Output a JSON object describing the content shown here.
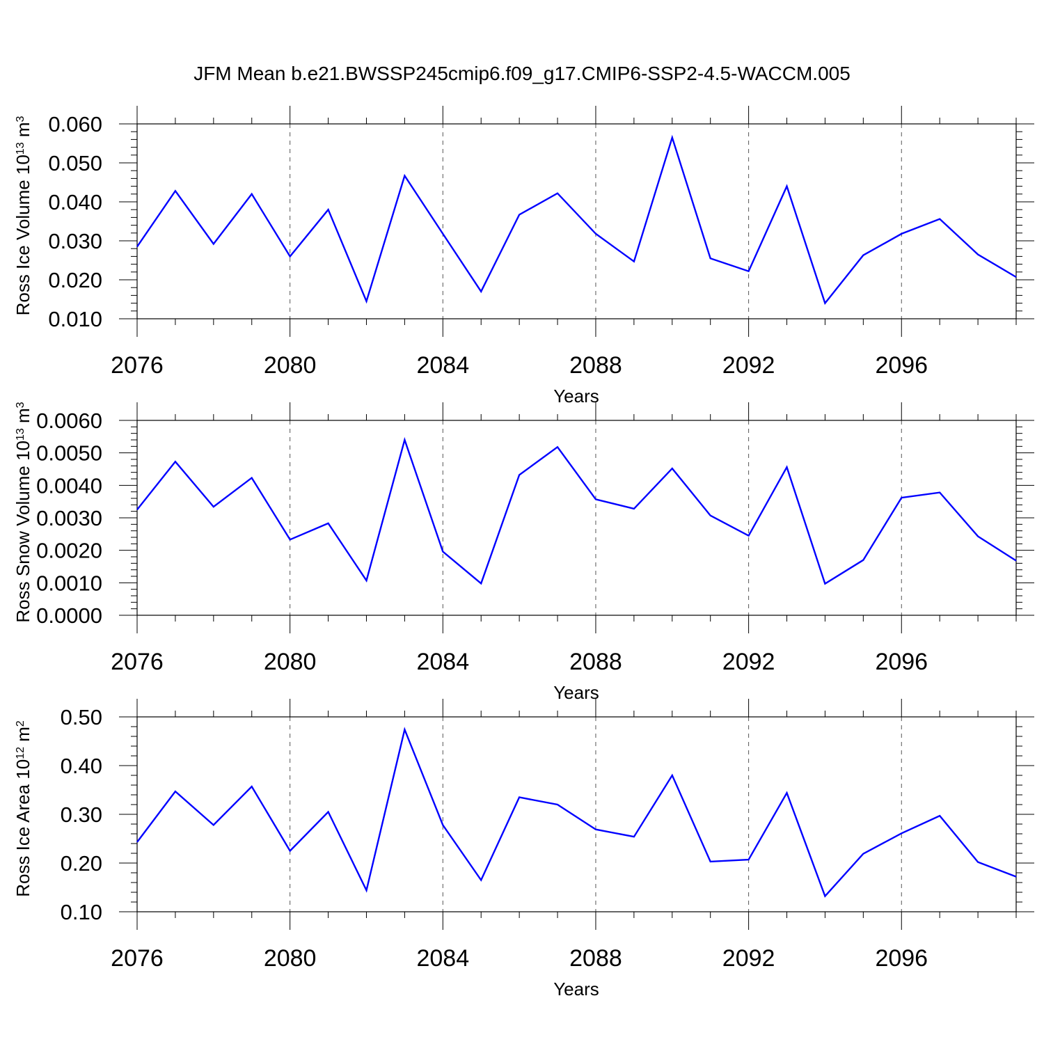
{
  "title": "JFM Mean b.e21.BWSSP245cmip6.f09_g17.CMIP6-SSP2-4.5-WACCM.005",
  "colors": {
    "line": "#0000ff",
    "axes": "#000000",
    "grid": "#555555"
  },
  "chart_data": [
    {
      "type": "line",
      "title": "JFM Mean b.e21.BWSSP245cmip6.f09_g17.CMIP6-SSP2-4.5-WACCM.005",
      "xlabel": "Years",
      "ylabel": {
        "text": "Ross Ice Volume 10",
        "sup": "13",
        "unit": " m",
        "unit_sup": "3"
      },
      "xlim": [
        2076,
        2099
      ],
      "ylim": [
        0.01,
        0.06
      ],
      "x_ticks": [
        "2076",
        "2080",
        "2084",
        "2088",
        "2092",
        "2096"
      ],
      "y_ticks": [
        "0.010",
        "0.020",
        "0.030",
        "0.040",
        "0.050",
        "0.060"
      ],
      "x": [
        2076,
        2077,
        2078,
        2079,
        2080,
        2081,
        2082,
        2083,
        2084,
        2085,
        2086,
        2087,
        2088,
        2089,
        2090,
        2091,
        2092,
        2093,
        2094,
        2095,
        2096,
        2097,
        2098,
        2099
      ],
      "series": [
        {
          "values": [
            0.0285,
            0.0428,
            0.0292,
            0.042,
            0.026,
            0.038,
            0.0145,
            0.0467,
            0.0318,
            0.017,
            0.0367,
            0.0422,
            0.0318,
            0.0247,
            0.0565,
            0.0255,
            0.0222,
            0.044,
            0.014,
            0.0263,
            0.0318,
            0.0356,
            0.0265,
            0.0207
          ]
        }
      ],
      "grid": "vertical dashed at major x ticks"
    },
    {
      "type": "line",
      "xlabel": "Years",
      "ylabel": {
        "text": "Ross Snow Volume 10",
        "sup": "13",
        "unit": " m",
        "unit_sup": "3"
      },
      "xlim": [
        2076,
        2099
      ],
      "ylim": [
        0.0,
        0.006
      ],
      "x_ticks": [
        "2076",
        "2080",
        "2084",
        "2088",
        "2092",
        "2096"
      ],
      "y_ticks": [
        "0.0000",
        "0.0010",
        "0.0020",
        "0.0030",
        "0.0040",
        "0.0050",
        "0.0060"
      ],
      "x": [
        2076,
        2077,
        2078,
        2079,
        2080,
        2081,
        2082,
        2083,
        2084,
        2085,
        2086,
        2087,
        2088,
        2089,
        2090,
        2091,
        2092,
        2093,
        2094,
        2095,
        2096,
        2097,
        2098,
        2099
      ],
      "series": [
        {
          "values": [
            0.00325,
            0.00473,
            0.00334,
            0.00423,
            0.00233,
            0.00283,
            0.00107,
            0.0054,
            0.00196,
            0.00098,
            0.00432,
            0.00518,
            0.00357,
            0.00328,
            0.00452,
            0.00307,
            0.00245,
            0.00456,
            0.00097,
            0.0017,
            0.00362,
            0.00378,
            0.00243,
            0.00168
          ]
        }
      ],
      "grid": "vertical dashed at major x ticks"
    },
    {
      "type": "line",
      "xlabel": "Years",
      "ylabel": {
        "text": "Ross Ice Area 10",
        "sup": "12",
        "unit": " m",
        "unit_sup": "2"
      },
      "xlim": [
        2076,
        2099
      ],
      "ylim": [
        0.1,
        0.5
      ],
      "x_ticks": [
        "2076",
        "2080",
        "2084",
        "2088",
        "2092",
        "2096"
      ],
      "y_ticks": [
        "0.10",
        "0.20",
        "0.30",
        "0.40",
        "0.50"
      ],
      "x": [
        2076,
        2077,
        2078,
        2079,
        2080,
        2081,
        2082,
        2083,
        2084,
        2085,
        2086,
        2087,
        2088,
        2089,
        2090,
        2091,
        2092,
        2093,
        2094,
        2095,
        2096,
        2097,
        2098,
        2099
      ],
      "series": [
        {
          "values": [
            0.243,
            0.347,
            0.278,
            0.357,
            0.225,
            0.305,
            0.144,
            0.474,
            0.278,
            0.165,
            0.335,
            0.32,
            0.269,
            0.254,
            0.38,
            0.203,
            0.207,
            0.344,
            0.132,
            0.219,
            0.261,
            0.297,
            0.202,
            0.172
          ]
        }
      ],
      "grid": "vertical dashed at major x ticks"
    }
  ]
}
